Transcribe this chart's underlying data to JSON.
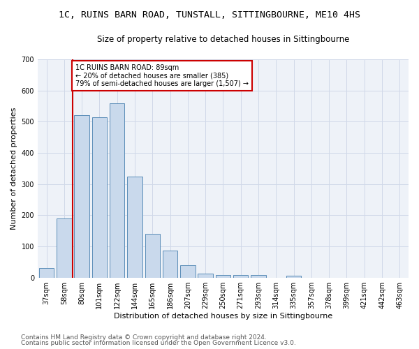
{
  "title1": "1C, RUINS BARN ROAD, TUNSTALL, SITTINGBOURNE, ME10 4HS",
  "title2": "Size of property relative to detached houses in Sittingbourne",
  "xlabel": "Distribution of detached houses by size in Sittingbourne",
  "ylabel": "Number of detached properties",
  "categories": [
    "37sqm",
    "58sqm",
    "80sqm",
    "101sqm",
    "122sqm",
    "144sqm",
    "165sqm",
    "186sqm",
    "207sqm",
    "229sqm",
    "250sqm",
    "271sqm",
    "293sqm",
    "314sqm",
    "335sqm",
    "357sqm",
    "378sqm",
    "399sqm",
    "421sqm",
    "442sqm",
    "463sqm"
  ],
  "values": [
    30,
    190,
    520,
    515,
    560,
    325,
    140,
    87,
    40,
    13,
    8,
    8,
    8,
    0,
    6,
    0,
    0,
    0,
    0,
    0,
    0
  ],
  "bar_color": "#c9d9ec",
  "bar_edge_color": "#5b8db8",
  "vline_color": "#cc0000",
  "annotation_text": "1C RUINS BARN ROAD: 89sqm\n← 20% of detached houses are smaller (385)\n79% of semi-detached houses are larger (1,507) →",
  "annotation_box_color": "white",
  "annotation_box_edge_color": "#cc0000",
  "footnote1": "Contains HM Land Registry data © Crown copyright and database right 2024.",
  "footnote2": "Contains public sector information licensed under the Open Government Licence v3.0.",
  "ylim": [
    0,
    700
  ],
  "yticks": [
    0,
    100,
    200,
    300,
    400,
    500,
    600,
    700
  ],
  "grid_color": "#d0d8e8",
  "bg_color": "#eef2f8",
  "title1_fontsize": 9.5,
  "title2_fontsize": 8.5,
  "xlabel_fontsize": 8,
  "ylabel_fontsize": 8,
  "tick_fontsize": 7,
  "annotation_fontsize": 7,
  "footnote_fontsize": 6.5
}
